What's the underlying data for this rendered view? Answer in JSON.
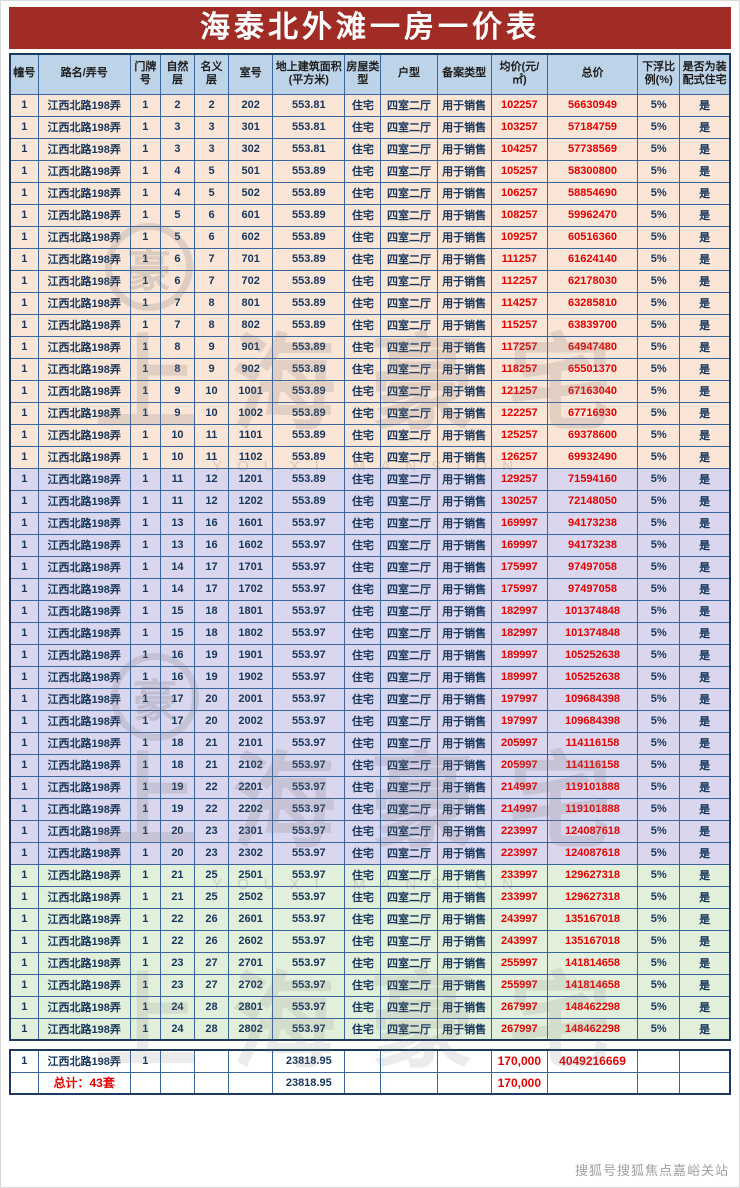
{
  "title": "海泰北外滩一房一价表",
  "table": {
    "headers": [
      "幢号",
      "路名/弄号",
      "门牌号",
      "自然层",
      "名义层",
      "室号",
      "地上建筑面积(平方米)",
      "房屋类型",
      "户型",
      "备案类型",
      "均价(元/㎡)",
      "总价",
      "下浮比 例(%)",
      "是否为装配式住宅"
    ],
    "red_columns": [
      10,
      11
    ],
    "section_ranges": [
      {
        "from": 0,
        "to": 16,
        "name": "peach"
      },
      {
        "from": 17,
        "to": 34,
        "name": "lavender"
      },
      {
        "from": 35,
        "to": 42,
        "name": "green"
      }
    ],
    "section_colors": {
      "peach": "#fbe5d6",
      "lavender": "#d9d6ee",
      "green": "#e2efda"
    },
    "rows": [
      [
        "1",
        "江西北路198弄",
        "1",
        "2",
        "2",
        "202",
        "553.81",
        "住宅",
        "四室二厅",
        "用于销售",
        "102257",
        "56630949",
        "5%",
        "是"
      ],
      [
        "1",
        "江西北路198弄",
        "1",
        "3",
        "3",
        "301",
        "553.81",
        "住宅",
        "四室二厅",
        "用于销售",
        "103257",
        "57184759",
        "5%",
        "是"
      ],
      [
        "1",
        "江西北路198弄",
        "1",
        "3",
        "3",
        "302",
        "553.81",
        "住宅",
        "四室二厅",
        "用于销售",
        "104257",
        "57738569",
        "5%",
        "是"
      ],
      [
        "1",
        "江西北路198弄",
        "1",
        "4",
        "5",
        "501",
        "553.89",
        "住宅",
        "四室二厅",
        "用于销售",
        "105257",
        "58300800",
        "5%",
        "是"
      ],
      [
        "1",
        "江西北路198弄",
        "1",
        "4",
        "5",
        "502",
        "553.89",
        "住宅",
        "四室二厅",
        "用于销售",
        "106257",
        "58854690",
        "5%",
        "是"
      ],
      [
        "1",
        "江西北路198弄",
        "1",
        "5",
        "6",
        "601",
        "553.89",
        "住宅",
        "四室二厅",
        "用于销售",
        "108257",
        "59962470",
        "5%",
        "是"
      ],
      [
        "1",
        "江西北路198弄",
        "1",
        "5",
        "6",
        "602",
        "553.89",
        "住宅",
        "四室二厅",
        "用于销售",
        "109257",
        "60516360",
        "5%",
        "是"
      ],
      [
        "1",
        "江西北路198弄",
        "1",
        "6",
        "7",
        "701",
        "553.89",
        "住宅",
        "四室二厅",
        "用于销售",
        "111257",
        "61624140",
        "5%",
        "是"
      ],
      [
        "1",
        "江西北路198弄",
        "1",
        "6",
        "7",
        "702",
        "553.89",
        "住宅",
        "四室二厅",
        "用于销售",
        "112257",
        "62178030",
        "5%",
        "是"
      ],
      [
        "1",
        "江西北路198弄",
        "1",
        "7",
        "8",
        "801",
        "553.89",
        "住宅",
        "四室二厅",
        "用于销售",
        "114257",
        "63285810",
        "5%",
        "是"
      ],
      [
        "1",
        "江西北路198弄",
        "1",
        "7",
        "8",
        "802",
        "553.89",
        "住宅",
        "四室二厅",
        "用于销售",
        "115257",
        "63839700",
        "5%",
        "是"
      ],
      [
        "1",
        "江西北路198弄",
        "1",
        "8",
        "9",
        "901",
        "553.89",
        "住宅",
        "四室二厅",
        "用于销售",
        "117257",
        "64947480",
        "5%",
        "是"
      ],
      [
        "1",
        "江西北路198弄",
        "1",
        "8",
        "9",
        "902",
        "553.89",
        "住宅",
        "四室二厅",
        "用于销售",
        "118257",
        "65501370",
        "5%",
        "是"
      ],
      [
        "1",
        "江西北路198弄",
        "1",
        "9",
        "10",
        "1001",
        "553.89",
        "住宅",
        "四室二厅",
        "用于销售",
        "121257",
        "67163040",
        "5%",
        "是"
      ],
      [
        "1",
        "江西北路198弄",
        "1",
        "9",
        "10",
        "1002",
        "553.89",
        "住宅",
        "四室二厅",
        "用于销售",
        "122257",
        "67716930",
        "5%",
        "是"
      ],
      [
        "1",
        "江西北路198弄",
        "1",
        "10",
        "11",
        "1101",
        "553.89",
        "住宅",
        "四室二厅",
        "用于销售",
        "125257",
        "69378600",
        "5%",
        "是"
      ],
      [
        "1",
        "江西北路198弄",
        "1",
        "10",
        "11",
        "1102",
        "553.89",
        "住宅",
        "四室二厅",
        "用于销售",
        "126257",
        "69932490",
        "5%",
        "是"
      ],
      [
        "1",
        "江西北路198弄",
        "1",
        "11",
        "12",
        "1201",
        "553.89",
        "住宅",
        "四室二厅",
        "用于销售",
        "129257",
        "71594160",
        "5%",
        "是"
      ],
      [
        "1",
        "江西北路198弄",
        "1",
        "11",
        "12",
        "1202",
        "553.89",
        "住宅",
        "四室二厅",
        "用于销售",
        "130257",
        "72148050",
        "5%",
        "是"
      ],
      [
        "1",
        "江西北路198弄",
        "1",
        "13",
        "16",
        "1601",
        "553.97",
        "住宅",
        "四室二厅",
        "用于销售",
        "169997",
        "94173238",
        "5%",
        "是"
      ],
      [
        "1",
        "江西北路198弄",
        "1",
        "13",
        "16",
        "1602",
        "553.97",
        "住宅",
        "四室二厅",
        "用于销售",
        "169997",
        "94173238",
        "5%",
        "是"
      ],
      [
        "1",
        "江西北路198弄",
        "1",
        "14",
        "17",
        "1701",
        "553.97",
        "住宅",
        "四室二厅",
        "用于销售",
        "175997",
        "97497058",
        "5%",
        "是"
      ],
      [
        "1",
        "江西北路198弄",
        "1",
        "14",
        "17",
        "1702",
        "553.97",
        "住宅",
        "四室二厅",
        "用于销售",
        "175997",
        "97497058",
        "5%",
        "是"
      ],
      [
        "1",
        "江西北路198弄",
        "1",
        "15",
        "18",
        "1801",
        "553.97",
        "住宅",
        "四室二厅",
        "用于销售",
        "182997",
        "101374848",
        "5%",
        "是"
      ],
      [
        "1",
        "江西北路198弄",
        "1",
        "15",
        "18",
        "1802",
        "553.97",
        "住宅",
        "四室二厅",
        "用于销售",
        "182997",
        "101374848",
        "5%",
        "是"
      ],
      [
        "1",
        "江西北路198弄",
        "1",
        "16",
        "19",
        "1901",
        "553.97",
        "住宅",
        "四室二厅",
        "用于销售",
        "189997",
        "105252638",
        "5%",
        "是"
      ],
      [
        "1",
        "江西北路198弄",
        "1",
        "16",
        "19",
        "1902",
        "553.97",
        "住宅",
        "四室二厅",
        "用于销售",
        "189997",
        "105252638",
        "5%",
        "是"
      ],
      [
        "1",
        "江西北路198弄",
        "1",
        "17",
        "20",
        "2001",
        "553.97",
        "住宅",
        "四室二厅",
        "用于销售",
        "197997",
        "109684398",
        "5%",
        "是"
      ],
      [
        "1",
        "江西北路198弄",
        "1",
        "17",
        "20",
        "2002",
        "553.97",
        "住宅",
        "四室二厅",
        "用于销售",
        "197997",
        "109684398",
        "5%",
        "是"
      ],
      [
        "1",
        "江西北路198弄",
        "1",
        "18",
        "21",
        "2101",
        "553.97",
        "住宅",
        "四室二厅",
        "用于销售",
        "205997",
        "114116158",
        "5%",
        "是"
      ],
      [
        "1",
        "江西北路198弄",
        "1",
        "18",
        "21",
        "2102",
        "553.97",
        "住宅",
        "四室二厅",
        "用于销售",
        "205997",
        "114116158",
        "5%",
        "是"
      ],
      [
        "1",
        "江西北路198弄",
        "1",
        "19",
        "22",
        "2201",
        "553.97",
        "住宅",
        "四室二厅",
        "用于销售",
        "214997",
        "119101888",
        "5%",
        "是"
      ],
      [
        "1",
        "江西北路198弄",
        "1",
        "19",
        "22",
        "2202",
        "553.97",
        "住宅",
        "四室二厅",
        "用于销售",
        "214997",
        "119101888",
        "5%",
        "是"
      ],
      [
        "1",
        "江西北路198弄",
        "1",
        "20",
        "23",
        "2301",
        "553.97",
        "住宅",
        "四室二厅",
        "用于销售",
        "223997",
        "124087618",
        "5%",
        "是"
      ],
      [
        "1",
        "江西北路198弄",
        "1",
        "20",
        "23",
        "2302",
        "553.97",
        "住宅",
        "四室二厅",
        "用于销售",
        "223997",
        "124087618",
        "5%",
        "是"
      ],
      [
        "1",
        "江西北路198弄",
        "1",
        "21",
        "25",
        "2501",
        "553.97",
        "住宅",
        "四室二厅",
        "用于销售",
        "233997",
        "129627318",
        "5%",
        "是"
      ],
      [
        "1",
        "江西北路198弄",
        "1",
        "21",
        "25",
        "2502",
        "553.97",
        "住宅",
        "四室二厅",
        "用于销售",
        "233997",
        "129627318",
        "5%",
        "是"
      ],
      [
        "1",
        "江西北路198弄",
        "1",
        "22",
        "26",
        "2601",
        "553.97",
        "住宅",
        "四室二厅",
        "用于销售",
        "243997",
        "135167018",
        "5%",
        "是"
      ],
      [
        "1",
        "江西北路198弄",
        "1",
        "22",
        "26",
        "2602",
        "553.97",
        "住宅",
        "四室二厅",
        "用于销售",
        "243997",
        "135167018",
        "5%",
        "是"
      ],
      [
        "1",
        "江西北路198弄",
        "1",
        "23",
        "27",
        "2701",
        "553.97",
        "住宅",
        "四室二厅",
        "用于销售",
        "255997",
        "141814658",
        "5%",
        "是"
      ],
      [
        "1",
        "江西北路198弄",
        "1",
        "23",
        "27",
        "2702",
        "553.97",
        "住宅",
        "四室二厅",
        "用于销售",
        "255997",
        "141814658",
        "5%",
        "是"
      ],
      [
        "1",
        "江西北路198弄",
        "1",
        "24",
        "28",
        "2801",
        "553.97",
        "住宅",
        "四室二厅",
        "用于销售",
        "267997",
        "148462298",
        "5%",
        "是"
      ],
      [
        "1",
        "江西北路198弄",
        "1",
        "24",
        "28",
        "2802",
        "553.97",
        "住宅",
        "四室二厅",
        "用于销售",
        "267997",
        "148462298",
        "5%",
        "是"
      ]
    ],
    "summary_rows": [
      [
        {
          "t": "1"
        },
        {
          "t": "江西北路198弄"
        },
        {
          "t": "1"
        },
        {
          "t": ""
        },
        {
          "t": ""
        },
        {
          "t": ""
        },
        {
          "t": "23818.95"
        },
        {
          "t": ""
        },
        {
          "t": ""
        },
        {
          "t": ""
        },
        {
          "t": "170,000",
          "red": true,
          "bold": true
        },
        {
          "t": "4049216669",
          "red": true,
          "bold": true
        },
        {
          "t": ""
        },
        {
          "t": ""
        }
      ],
      [
        {
          "t": ""
        },
        {
          "t": "总计：43套",
          "red": true,
          "bold": true
        },
        {
          "t": ""
        },
        {
          "t": ""
        },
        {
          "t": ""
        },
        {
          "t": ""
        },
        {
          "t": "23818.95"
        },
        {
          "t": ""
        },
        {
          "t": ""
        },
        {
          "t": ""
        },
        {
          "t": "170,000",
          "red": true,
          "bold": true
        },
        {
          "t": ""
        },
        {
          "t": ""
        },
        {
          "t": ""
        }
      ]
    ]
  },
  "colors": {
    "title_bg": "#a12c25",
    "header_bg": "#bdd3e7",
    "grid_border": "#3a66a0",
    "price_red": "#e60000",
    "text_navy": "#16365c"
  },
  "watermark": {
    "cn": "上海豪宅",
    "en": "YOUXI MANSION",
    "logo_char": "豪"
  },
  "footer_credit": "搜狐号搜狐焦点嘉峪关站"
}
